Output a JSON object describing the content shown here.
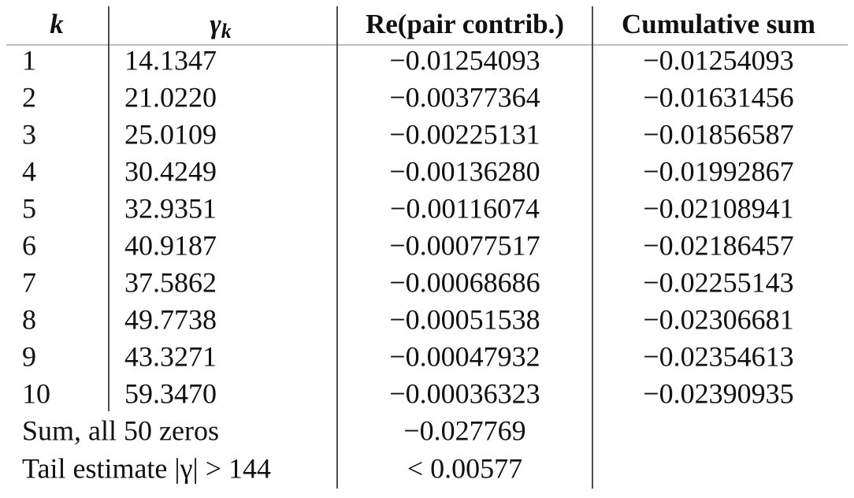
{
  "table": {
    "header": [
      "k",
      {
        "base": "γ",
        "sub": "k"
      },
      "Re(pair contrib.)",
      "Cumulative sum"
    ],
    "rows": [
      [
        "1",
        "14.1347",
        "−0.01254093",
        "−0.01254093"
      ],
      [
        "2",
        "21.0220",
        "−0.00377364",
        "−0.01631456"
      ],
      [
        "3",
        "25.0109",
        "−0.00225131",
        "−0.01856587"
      ],
      [
        "4",
        "30.4249",
        "−0.00136280",
        "−0.01992867"
      ],
      [
        "5",
        "32.9351",
        "−0.00116074",
        "−0.02108941"
      ],
      [
        "6",
        "40.9187",
        "−0.00077517",
        "−0.02186457"
      ],
      [
        "7",
        "37.5862",
        "−0.00068686",
        "−0.02255143"
      ],
      [
        "8",
        "49.7738",
        "−0.00051538",
        "−0.02306681"
      ],
      [
        "9",
        "43.3271",
        "−0.00047932",
        "−0.02354613"
      ],
      [
        "10",
        "59.3470",
        "−0.00036323",
        "−0.02390935"
      ]
    ],
    "footer": [
      [
        "Sum, all 50 zeros",
        "−0.027769"
      ],
      [
        "Tail estimate |γ| > 144",
        "< 0.00577"
      ]
    ]
  }
}
